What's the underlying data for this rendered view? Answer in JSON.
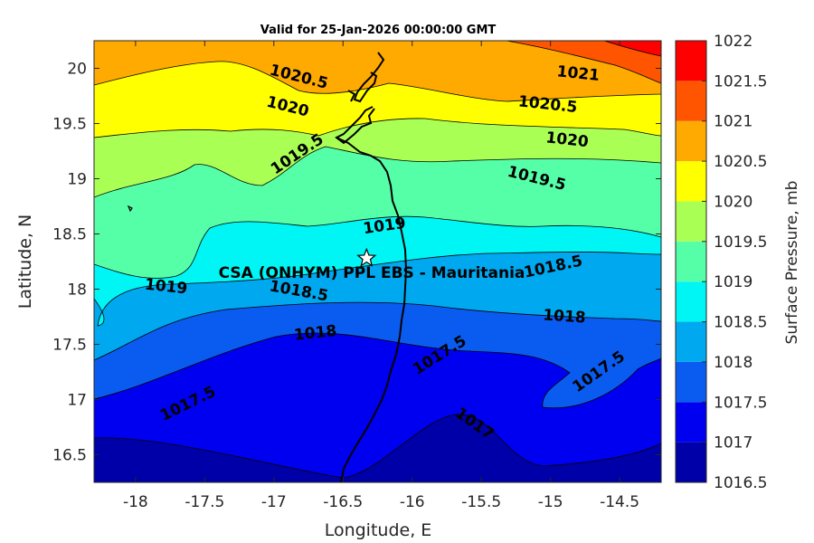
{
  "chart_data": {
    "type": "contour",
    "title": "Valid for 25-Jan-2026 00:00:00 GMT",
    "xlabel": "Longitude, E",
    "ylabel": "Latitude, N",
    "xlim": [
      -18.3,
      -14.2
    ],
    "ylim": [
      16.25,
      20.25
    ],
    "x_ticks": [
      -18,
      -17.5,
      -17,
      -16.5,
      -16,
      -15.5,
      -15,
      -14.5
    ],
    "y_ticks": [
      16.5,
      17,
      17.5,
      18,
      18.5,
      19,
      19.5,
      20
    ],
    "colorbar": {
      "label": "Surface Pressure, mb",
      "levels": [
        1016.5,
        1017,
        1017.5,
        1018,
        1018.5,
        1019,
        1019.5,
        1020,
        1020.5,
        1021,
        1021.5,
        1022
      ],
      "tick_labels": [
        "1016.5",
        "1017",
        "1017.5",
        "1018",
        "1018.5",
        "1019",
        "1019.5",
        "1020",
        "1020.5",
        "1021",
        "1021.5",
        "1022"
      ],
      "colors": [
        "#0000a8",
        "#0000f0",
        "#0a5cf0",
        "#00a8f0",
        "#00f5f5",
        "#55ffa8",
        "#aaff55",
        "#ffff00",
        "#ffaa00",
        "#ff5500",
        "#ff0000",
        "#aa0000"
      ]
    },
    "contour_levels": [
      1017,
      1017.5,
      1018,
      1018.5,
      1019,
      1019.5,
      1020,
      1020.5,
      1021
    ],
    "contour_labels": [
      {
        "text": "1020.5",
        "lon": -16.82,
        "lat": 19.92,
        "angle": 14
      },
      {
        "text": "1021",
        "lon": -14.8,
        "lat": 19.95,
        "angle": 6
      },
      {
        "text": "1020",
        "lon": -16.9,
        "lat": 19.65,
        "angle": 14
      },
      {
        "text": "1020.5",
        "lon": -15.02,
        "lat": 19.67,
        "angle": 6
      },
      {
        "text": "1020",
        "lon": -14.88,
        "lat": 19.35,
        "angle": 6
      },
      {
        "text": "1019.5",
        "lon": -16.83,
        "lat": 19.22,
        "angle": -34
      },
      {
        "text": "1019.5",
        "lon": -15.1,
        "lat": 19.0,
        "angle": 14
      },
      {
        "text": "1019",
        "lon": -16.2,
        "lat": 18.57,
        "angle": -8
      },
      {
        "text": "1019",
        "lon": -17.78,
        "lat": 18.02,
        "angle": 6
      },
      {
        "text": "1018.5",
        "lon": -16.82,
        "lat": 17.98,
        "angle": 10
      },
      {
        "text": "1018.5",
        "lon": -14.98,
        "lat": 18.2,
        "angle": -12
      },
      {
        "text": "1018",
        "lon": -16.7,
        "lat": 17.6,
        "angle": -6
      },
      {
        "text": "1018",
        "lon": -14.9,
        "lat": 17.75,
        "angle": 4
      },
      {
        "text": "1017.5",
        "lon": -15.8,
        "lat": 17.4,
        "angle": -32
      },
      {
        "text": "1017.5",
        "lon": -14.65,
        "lat": 17.25,
        "angle": -35
      },
      {
        "text": "1017.5",
        "lon": -17.62,
        "lat": 16.96,
        "angle": -26
      },
      {
        "text": "1017",
        "lon": -15.55,
        "lat": 16.78,
        "angle": 35
      }
    ],
    "site": {
      "label": "CSA (ONHYM) PPL EBS  - Mauritania",
      "lon": -16.33,
      "lat": 18.28,
      "marker": "star"
    }
  }
}
